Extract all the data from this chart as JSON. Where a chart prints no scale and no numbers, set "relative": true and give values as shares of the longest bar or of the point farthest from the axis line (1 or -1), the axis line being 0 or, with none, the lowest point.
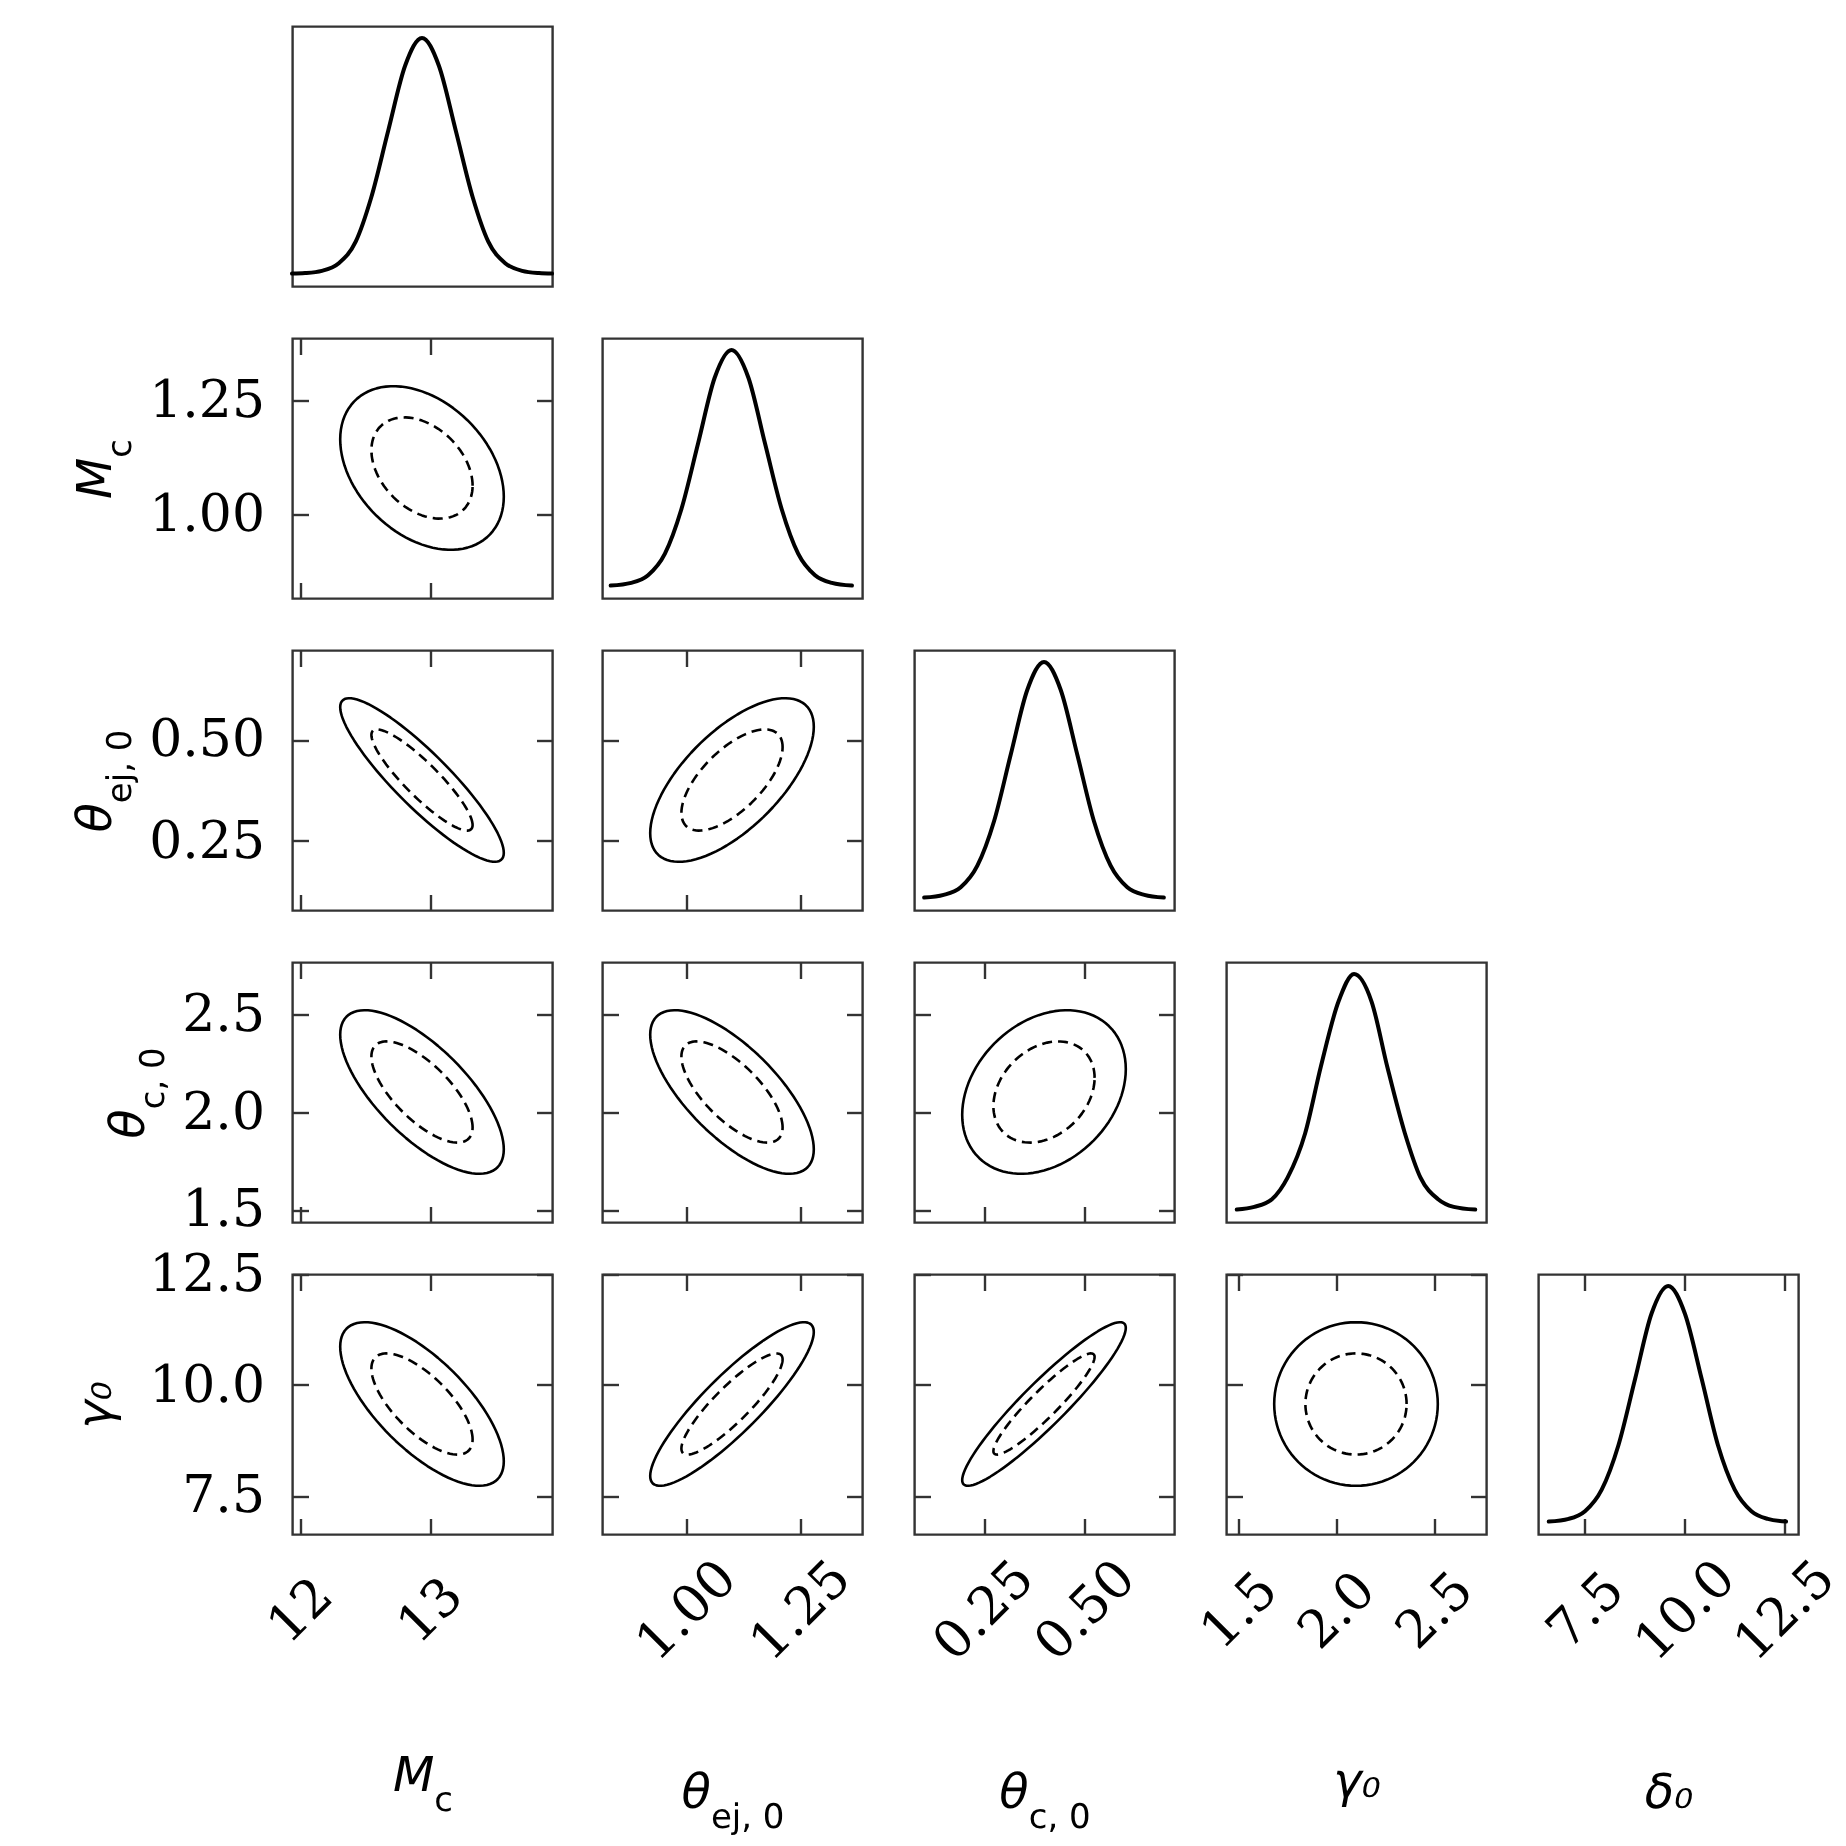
{
  "chart_data": [
    {
      "type": "line",
      "relative": true,
      "xlim": [
        11.94,
        13.94
      ],
      "tick_labels": false,
      "color": "#000000",
      "x": [
        11.94,
        12.04,
        12.17,
        12.3,
        12.43,
        12.55,
        12.68,
        12.81,
        12.94,
        13.07,
        13.2,
        13.33,
        13.45,
        13.58,
        13.71,
        13.84,
        13.94
      ],
      "values": [
        0.05,
        0.052,
        0.061,
        0.092,
        0.179,
        0.358,
        0.626,
        0.888,
        1,
        0.888,
        0.626,
        0.358,
        0.179,
        0.092,
        0.061,
        0.052,
        0.05
      ]
    },
    {
      "type": "line",
      "ylabel": "M$_{c}$",
      "xlim": [
        11.94,
        13.94
      ],
      "ylim": [
        0.816,
        1.386
      ],
      "xticks": [
        12,
        13
      ],
      "yticks": [
        {
          "value": 1,
          "label": "1.00"
        },
        1.25
      ],
      "tick_labels": "y"
    },
    {
      "type": "line",
      "relative": true,
      "xlim": [
        0.816,
        1.386
      ],
      "tick_labels": false,
      "color": "#000000",
      "x": [
        0.835,
        0.88,
        0.917,
        0.954,
        0.99,
        1.027,
        1.063,
        1.1,
        1.137,
        1.173,
        1.21,
        1.246,
        1.283,
        1.32,
        1.364
      ],
      "values": [
        0.05,
        0.061,
        0.092,
        0.179,
        0.358,
        0.626,
        0.888,
        1,
        0.888,
        0.626,
        0.358,
        0.179,
        0.092,
        0.061,
        0.05
      ]
    },
    {
      "type": "line",
      "ylabel": "θ$_{ej, 0}$",
      "xlim": [
        11.94,
        13.94
      ],
      "ylim": [
        0.08,
        0.72
      ],
      "xticks": [
        12,
        13
      ],
      "yticks": [
        0.25,
        {
          "value": 0.5,
          "label": "0.50"
        }
      ],
      "tick_labels": "y"
    },
    {
      "type": "line",
      "xlim": [
        0.816,
        1.386
      ],
      "ylim": [
        0.08,
        0.72
      ],
      "xticks": [
        1,
        1.25
      ],
      "yticks": [
        0.25,
        0.5
      ],
      "tick_labels": false
    },
    {
      "type": "line",
      "relative": true,
      "xlim": [
        0.08,
        0.72
      ],
      "tick_labels": false,
      "color": "#000000",
      "x": [
        0.105,
        0.153,
        0.195,
        0.236,
        0.277,
        0.318,
        0.359,
        0.4,
        0.441,
        0.482,
        0.523,
        0.564,
        0.605,
        0.647,
        0.695
      ],
      "values": [
        0.05,
        0.061,
        0.092,
        0.179,
        0.358,
        0.626,
        0.888,
        1,
        0.888,
        0.626,
        0.358,
        0.179,
        0.092,
        0.061,
        0.05
      ]
    },
    {
      "type": "line",
      "ylabel": "θ$_{c, 0}$",
      "xlim": [
        11.94,
        13.94
      ],
      "ylim": [
        1.435,
        2.765
      ],
      "xticks": [
        12,
        13
      ],
      "yticks": [
        1.5,
        {
          "value": 2,
          "label": "2.0"
        },
        2.5
      ],
      "tick_labels": "y"
    },
    {
      "type": "line",
      "xlim": [
        0.816,
        1.386
      ],
      "ylim": [
        1.435,
        2.765
      ],
      "xticks": [
        1,
        1.25
      ],
      "yticks": [
        1.5,
        2,
        2.5
      ],
      "tick_labels": false
    },
    {
      "type": "line",
      "xlim": [
        0.08,
        0.72
      ],
      "ylim": [
        1.435,
        2.765
      ],
      "xticks": [
        0.25,
        0.5
      ],
      "yticks": [
        1.5,
        2,
        2.5
      ],
      "tick_labels": false
    },
    {
      "type": "line",
      "relative": true,
      "xlim": [
        1.435,
        2.765
      ],
      "tick_labels": false,
      "color": "#000000",
      "x": [
        1.49,
        1.58,
        1.67,
        1.75,
        1.84,
        1.92,
        2.01,
        2.09,
        2.18,
        2.26,
        2.35,
        2.43,
        2.52,
        2.6,
        2.71
      ],
      "values": [
        0.05,
        0.061,
        0.092,
        0.179,
        0.358,
        0.626,
        0.888,
        1,
        0.888,
        0.626,
        0.358,
        0.179,
        0.092,
        0.061,
        0.05
      ]
    },
    {
      "type": "line",
      "xlabel": "M$_{c}$",
      "ylabel": "γ₀",
      "xlim": [
        11.94,
        13.94
      ],
      "ylim": [
        6.62,
        12.5
      ],
      "xticks": [
        12,
        13
      ],
      "yticks": [
        7.5,
        {
          "value": 10,
          "label": "10.0"
        },
        12.5
      ]
    },
    {
      "type": "line",
      "xlabel": "θ$_{ej, 0}$",
      "xlim": [
        0.816,
        1.386
      ],
      "ylim": [
        6.62,
        12.5
      ],
      "xticks": [
        {
          "value": 1,
          "label": "1.00"
        },
        1.25
      ],
      "yticks": [
        7.5,
        10,
        12.5
      ],
      "tick_labels": "x"
    },
    {
      "type": "line",
      "xlabel": "θ$_{c, 0}$",
      "xlim": [
        0.08,
        0.72
      ],
      "ylim": [
        6.62,
        12.5
      ],
      "xticks": [
        0.25,
        {
          "value": 0.5,
          "label": "0.50"
        }
      ],
      "yticks": [
        7.5,
        10,
        12.5
      ],
      "tick_labels": "x"
    },
    {
      "type": "line",
      "xlabel": "γ₀",
      "xlim": [
        1.435,
        2.765
      ],
      "ylim": [
        6.62,
        12.5
      ],
      "xticks": [
        1.5,
        {
          "value": 2,
          "label": "2.0"
        },
        2.5
      ],
      "yticks": [
        7.5,
        10,
        12.5
      ],
      "tick_labels": "x"
    },
    {
      "type": "line",
      "relative": true,
      "xlabel": "δ₀",
      "xlim": [
        6.32,
        12.85
      ],
      "xticks": [
        7.5,
        {
          "value": 10,
          "label": "10.0"
        },
        12.5
      ],
      "tick_labels": "x",
      "color": "#000000",
      "x": [
        6.59,
        7.09,
        7.5,
        7.92,
        8.34,
        8.76,
        9.17,
        9.59,
        10.01,
        10.43,
        10.84,
        11.26,
        11.68,
        12.09,
        12.55
      ],
      "values": [
        0.05,
        0.061,
        0.092,
        0.179,
        0.358,
        0.626,
        0.888,
        1,
        0.888,
        0.626,
        0.358,
        0.179,
        0.092,
        0.061,
        0.05
      ]
    }
  ]
}
